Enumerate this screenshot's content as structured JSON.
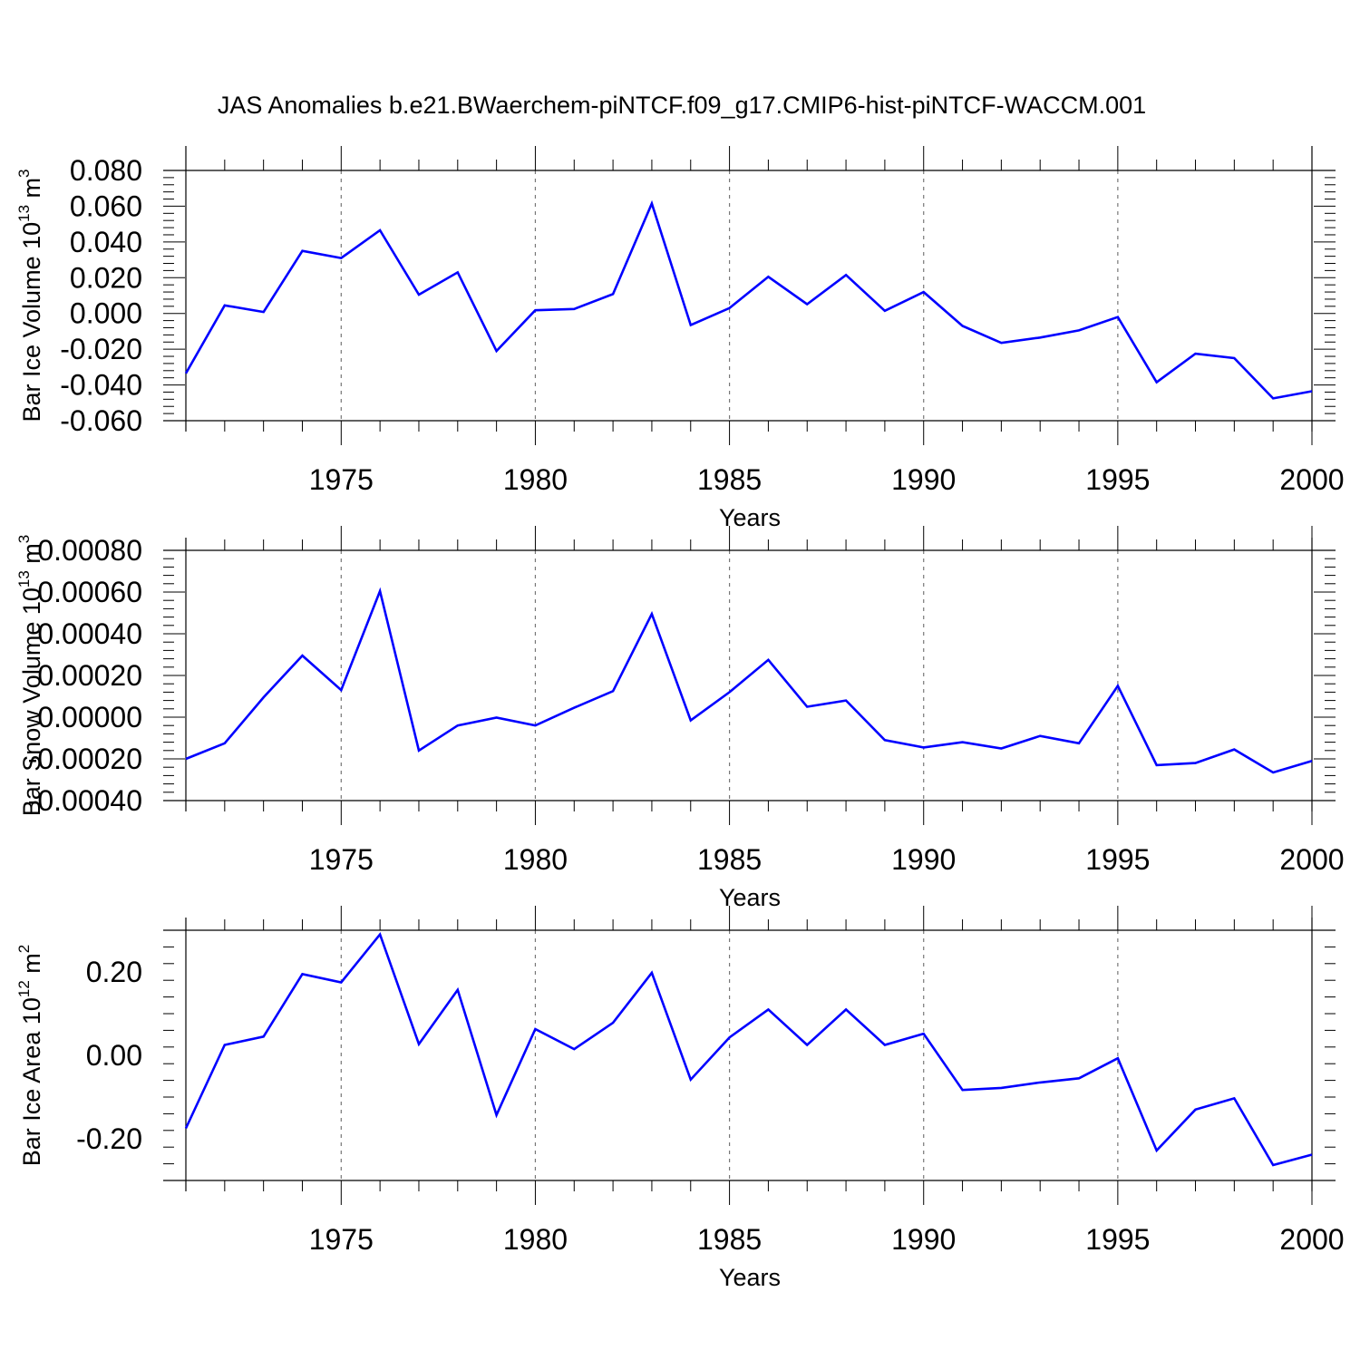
{
  "title": "JAS Anomalies b.e21.BWaerchem-piNTCF.f09_g17.CMIP6-hist-piNTCF-WACCM.001",
  "colors": {
    "line": "#0000ff",
    "axis": "#000000",
    "grid": "#777777"
  },
  "chart_data": [
    {
      "type": "line",
      "xlabel": "Years",
      "ylabel_main": "Bar Ice Volume 10",
      "ylabel_exp": "13",
      "ylabel_tail": " m",
      "ylabel_unit_exp": "3",
      "xlim": [
        1971,
        2000
      ],
      "ylim": [
        -0.06,
        0.08
      ],
      "y_ticks": [
        -0.06,
        -0.04,
        -0.02,
        0.0,
        0.02,
        0.04,
        0.06,
        0.08
      ],
      "y_tick_labels": [
        "-0.060",
        "-0.040",
        "-0.020",
        "0.000",
        "0.020",
        "0.040",
        "0.060",
        "0.080"
      ],
      "x_ticks": [
        1975,
        1980,
        1985,
        1990,
        1995,
        2000
      ],
      "x_tick_labels": [
        "1975",
        "1980",
        "1985",
        "1990",
        "1995",
        "2000"
      ],
      "grid": "vertical dashed at x ticks",
      "x": [
        1971,
        1972,
        1973,
        1974,
        1975,
        1976,
        1977,
        1978,
        1979,
        1980,
        1981,
        1982,
        1983,
        1984,
        1985,
        1986,
        1987,
        1988,
        1989,
        1990,
        1991,
        1992,
        1993,
        1994,
        1995,
        1996,
        1997,
        1998,
        1999,
        2000
      ],
      "y": [
        -0.0335,
        0.0045,
        0.0008,
        0.035,
        0.031,
        0.0465,
        0.0105,
        0.023,
        -0.021,
        0.0018,
        0.0025,
        0.0108,
        0.0615,
        -0.0065,
        0.003,
        0.0205,
        0.0052,
        0.0215,
        0.0015,
        0.012,
        -0.007,
        -0.0165,
        -0.0135,
        -0.0095,
        -0.002,
        -0.0385,
        -0.0225,
        -0.025,
        -0.0475,
        -0.0435
      ]
    },
    {
      "type": "line",
      "xlabel": "Years",
      "ylabel_main": "Bar Snow Volume 10",
      "ylabel_exp": "13",
      "ylabel_tail": " m",
      "ylabel_unit_exp": "3",
      "xlim": [
        1971,
        2000
      ],
      "ylim": [
        -0.0004,
        0.0008
      ],
      "y_ticks": [
        -0.0004,
        -0.0002,
        0.0,
        0.0002,
        0.0004,
        0.0006,
        0.0008
      ],
      "y_tick_labels": [
        "-0.00040",
        "-0.00020",
        "0.00000",
        "0.00020",
        "0.00040",
        "0.00060",
        "0.00080"
      ],
      "x_ticks": [
        1975,
        1980,
        1985,
        1990,
        1995,
        2000
      ],
      "x_tick_labels": [
        "1975",
        "1980",
        "1985",
        "1990",
        "1995",
        "2000"
      ],
      "grid": "vertical dashed at x ticks",
      "x": [
        1971,
        1972,
        1973,
        1974,
        1975,
        1976,
        1977,
        1978,
        1979,
        1980,
        1981,
        1982,
        1983,
        1984,
        1985,
        1986,
        1987,
        1988,
        1989,
        1990,
        1991,
        1992,
        1993,
        1994,
        1995,
        1996,
        1997,
        1998,
        1999,
        2000
      ],
      "y": [
        -0.0002,
        -0.000125,
        9.5e-05,
        0.000295,
        0.00013,
        0.000605,
        -0.00016,
        -4e-05,
        -2e-06,
        -4e-05,
        4.5e-05,
        0.000125,
        0.000495,
        -1.5e-05,
        0.00012,
        0.000275,
        5e-05,
        8e-05,
        -0.00011,
        -0.000145,
        -0.00012,
        -0.00015,
        -9e-05,
        -0.000125,
        0.00015,
        -0.00023,
        -0.00022,
        -0.000155,
        -0.000265,
        -0.00021
      ]
    },
    {
      "type": "line",
      "xlabel": "Years",
      "ylabel_main": "Bar Ice Area 10",
      "ylabel_exp": "12",
      "ylabel_tail": " m",
      "ylabel_unit_exp": "2",
      "xlim": [
        1971,
        2000
      ],
      "ylim": [
        -0.3,
        0.3
      ],
      "y_ticks": [
        -0.2,
        0.0,
        0.2
      ],
      "y_tick_labels": [
        "-0.20",
        "0.00",
        "0.20"
      ],
      "x_ticks": [
        1975,
        1980,
        1985,
        1990,
        1995,
        2000
      ],
      "x_tick_labels": [
        "1975",
        "1980",
        "1985",
        "1990",
        "1995",
        "2000"
      ],
      "grid": "vertical dashed at x ticks",
      "x": [
        1971,
        1972,
        1973,
        1974,
        1975,
        1976,
        1977,
        1978,
        1979,
        1980,
        1981,
        1982,
        1983,
        1984,
        1985,
        1986,
        1987,
        1988,
        1989,
        1990,
        1991,
        1992,
        1993,
        1994,
        1995,
        1996,
        1997,
        1998,
        1999,
        2000
      ],
      "y": [
        -0.175,
        0.025,
        0.045,
        0.195,
        0.175,
        0.29,
        0.027,
        0.157,
        -0.143,
        0.063,
        0.015,
        0.078,
        0.198,
        -0.058,
        0.043,
        0.11,
        0.025,
        0.11,
        0.025,
        0.052,
        -0.083,
        -0.078,
        -0.065,
        -0.055,
        -0.007,
        -0.228,
        -0.13,
        -0.103,
        -0.263,
        -0.238
      ]
    }
  ]
}
